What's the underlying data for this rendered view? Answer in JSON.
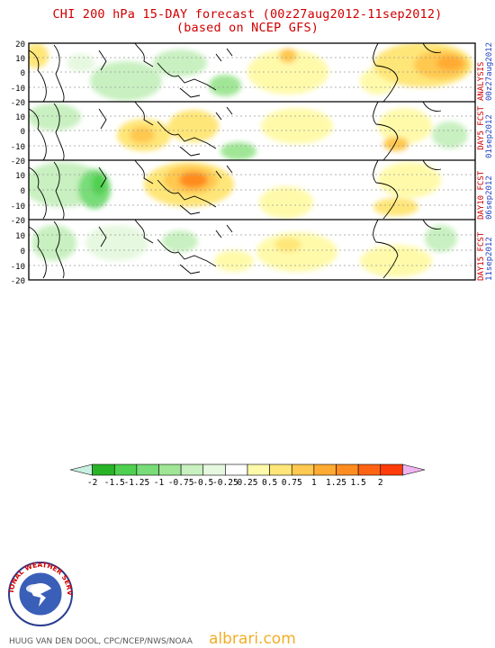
{
  "header": {
    "title_line1": "CHI 200 hPa 15-DAY forecast (00z27aug2012-11sep2012)",
    "title_line2": "(based on NCEP GFS)"
  },
  "panels": [
    {
      "label_top": "ANALYSIS",
      "label_bottom": "00z27aug2012"
    },
    {
      "label_top": "DAY5 FCST",
      "label_bottom": "01sep2012"
    },
    {
      "label_top": "DAY10 FCST",
      "label_bottom": "06sep2012"
    },
    {
      "label_top": "DAY15 FCST",
      "label_bottom": "11sep2012"
    }
  ],
  "y_ticks": [
    "20",
    "10",
    "0",
    "-10",
    "-20"
  ],
  "colorbar": {
    "ticks": [
      "-2",
      "-1.5",
      "-1.25",
      "-1",
      "-0.75",
      "-0.5",
      "-0.25",
      "0.25",
      "0.5",
      "0.75",
      "1",
      "1.25",
      "1.5",
      "2"
    ],
    "colors": [
      "#c8f0e0",
      "#28b428",
      "#50d050",
      "#78dc78",
      "#a0e696",
      "#c8f0c0",
      "#e6f8e0",
      "#ffffff",
      "#fffaaa",
      "#ffe678",
      "#ffc850",
      "#ffaa32",
      "#ff8c1e",
      "#ff6414",
      "#ff3c0a",
      "#f0b4f0"
    ]
  },
  "logo": {
    "text": "NATIONAL WEATHER SERVICE"
  },
  "credit": "HUUG VAN DEN DOOL, CPC/NCEP/NWS/NOAA",
  "watermark": "albrari.com"
}
